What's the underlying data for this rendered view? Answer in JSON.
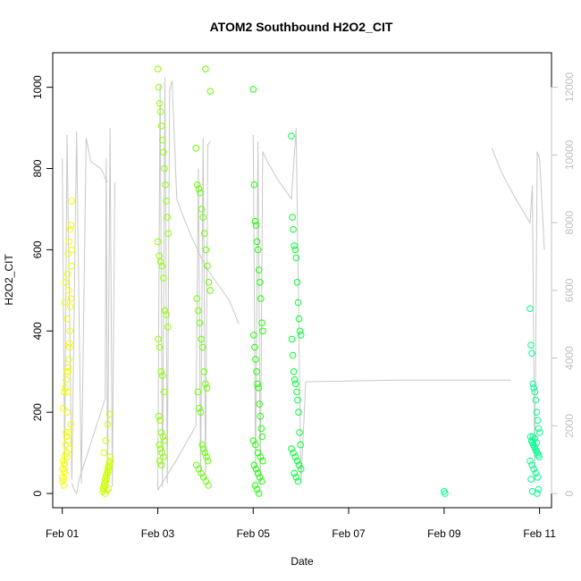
{
  "chart_data": {
    "type": "scatter",
    "title": "ATOM2 Southbound H2O2_CIT",
    "xlabel": "Date",
    "ylabel": "H2O2_CIT",
    "x_unit": "days",
    "xlim": [
      -0.2,
      10.25
    ],
    "ylim": [
      -35,
      1085
    ],
    "y2lim": [
      -420,
      13020
    ],
    "x_ticks": [
      0,
      2,
      4,
      6,
      8,
      10
    ],
    "x_tick_labels": [
      "Feb 01",
      "Feb 03",
      "Feb 05",
      "Feb 07",
      "Feb 09",
      "Feb 11"
    ],
    "y_ticks": [
      0,
      200,
      400,
      600,
      800,
      1000
    ],
    "y2_ticks": [
      0,
      2000,
      4000,
      6000,
      8000,
      10000,
      12000
    ],
    "colors": {
      "altitude_line": "#c8c8c8",
      "right_axis": "#c0c0c0",
      "gradient": [
        "#ffff00",
        "#bfff00",
        "#80ff00",
        "#40ff00",
        "#00ff40",
        "#00ff80",
        "#00ffbf"
      ]
    },
    "altitude_series": [
      {
        "name": "",
        "flight": 1,
        "x": [
          0.0,
          0.05,
          0.1,
          0.2,
          0.3,
          0.4,
          0.5,
          0.6,
          0.7,
          0.8,
          0.85,
          0.9,
          0.95
        ],
        "y": [
          9900,
          900,
          10600,
          400,
          10700,
          300,
          10500,
          9800,
          9700,
          9600,
          9500,
          9300,
          9200
        ]
      },
      {
        "name": "",
        "flight": 2,
        "x": [
          0.2,
          0.25,
          0.3,
          0.35,
          0.9,
          0.92,
          0.95,
          1.0,
          1.05,
          1.1
        ],
        "y": [
          300,
          100,
          0,
          400,
          2800,
          9900,
          300,
          10800,
          200,
          9200
        ]
      },
      {
        "name": "",
        "flight": 3,
        "x": [
          2.0,
          2.05,
          2.1,
          2.15,
          2.2,
          2.25,
          2.3,
          2.4,
          2.5,
          2.7,
          3.0,
          3.5,
          3.7
        ],
        "y": [
          100,
          12100,
          200,
          12300,
          300,
          11900,
          12200,
          8700,
          8300,
          7600,
          6700,
          5700,
          5000
        ]
      },
      {
        "name": "",
        "flight": 4,
        "x": [
          2.0,
          2.4,
          2.8,
          2.85,
          2.9,
          2.95,
          3.0,
          3.05,
          3.1
        ],
        "y": [
          100,
          1000,
          2000,
          9600,
          500,
          10500,
          400,
          10300,
          10400
        ]
      },
      {
        "name": "",
        "flight": 5,
        "x": [
          4.0,
          4.05,
          4.1,
          4.15,
          4.2,
          4.3,
          4.5,
          4.8,
          4.9,
          5.0,
          5.1,
          7.0,
          9.4
        ],
        "y": [
          10600,
          500,
          10400,
          300,
          10100,
          9800,
          9300,
          8700,
          10800,
          300,
          3300,
          3350,
          3350
        ]
      },
      {
        "name": "",
        "flight": 6,
        "x": [
          9.0,
          9.2,
          9.5,
          9.8,
          9.85,
          9.9,
          9.95,
          10.0,
          10.1
        ],
        "y": [
          10200,
          9500,
          8700,
          8000,
          9100,
          300,
          10100,
          9900,
          7200
        ]
      }
    ],
    "series": [
      {
        "name": "",
        "flight": 1,
        "color": "#f2ff00",
        "x": [
          0.0,
          0.01,
          0.02,
          0.03,
          0.04,
          0.05,
          0.06,
          0.07,
          0.08,
          0.09,
          0.1,
          0.11,
          0.12,
          0.13,
          0.14,
          0.15,
          0.16,
          0.17,
          0.18,
          0.19,
          0.2,
          0.02,
          0.04,
          0.06,
          0.08,
          0.1,
          0.12,
          0.14,
          0.16,
          0.18,
          0.2,
          0.05,
          0.1,
          0.15,
          0.05,
          0.1,
          0.15,
          0.0,
          0.03,
          0.06,
          0.09,
          0.12,
          0.15,
          0.18,
          0.07,
          0.11,
          0.13
        ],
        "y": [
          40,
          60,
          80,
          35,
          55,
          75,
          95,
          120,
          150,
          140,
          200,
          250,
          300,
          310,
          330,
          360,
          400,
          460,
          480,
          560,
          600,
          210,
          250,
          260,
          280,
          300,
          590,
          620,
          650,
          660,
          720,
          470,
          430,
          370,
          70,
          90,
          110,
          30,
          20,
          50,
          100,
          130,
          150,
          170,
          520,
          540,
          500
        ]
      },
      {
        "name": "",
        "flight": 2,
        "color": "#ccff00",
        "x": [
          0.85,
          0.87,
          0.89,
          0.91,
          0.93,
          0.95,
          0.97,
          0.99,
          1.01,
          0.86,
          0.88,
          0.9,
          0.92,
          0.94,
          0.96,
          0.98,
          1.0,
          0.87,
          0.91,
          0.95,
          0.99,
          0.9,
          0.94,
          0.97
        ],
        "y": [
          5,
          10,
          20,
          30,
          40,
          50,
          60,
          70,
          80,
          15,
          25,
          35,
          45,
          55,
          65,
          75,
          90,
          100,
          130,
          170,
          195,
          0,
          8,
          12
        ]
      },
      {
        "name": "",
        "flight": 3,
        "color": "#8cff00",
        "x": [
          2.0,
          2.02,
          2.04,
          2.06,
          2.08,
          2.1,
          2.12,
          2.14,
          2.16,
          2.18,
          2.2,
          2.22,
          2.0,
          2.03,
          2.06,
          2.09,
          2.12,
          2.15,
          2.18,
          2.21,
          2.01,
          2.04,
          2.07,
          2.1,
          2.13,
          2.02,
          2.05,
          2.08,
          2.11,
          2.14,
          2.03,
          2.06,
          2.09,
          2.12,
          2.04,
          2.08
        ],
        "y": [
          1045,
          1000,
          960,
          940,
          905,
          870,
          840,
          800,
          760,
          720,
          680,
          640,
          620,
          585,
          570,
          560,
          530,
          450,
          440,
          410,
          380,
          360,
          300,
          290,
          250,
          190,
          180,
          150,
          140,
          130,
          120,
          110,
          100,
          90,
          80,
          70
        ]
      },
      {
        "name": "",
        "flight": 4,
        "color": "#66ff00",
        "x": [
          2.8,
          2.83,
          2.86,
          2.89,
          2.92,
          2.95,
          2.98,
          3.01,
          3.04,
          3.07,
          3.1,
          2.82,
          2.85,
          2.88,
          2.91,
          2.94,
          2.97,
          3.0,
          3.03,
          2.84,
          2.87,
          2.9,
          2.93,
          2.96,
          2.99,
          3.02,
          3.05,
          2.81,
          2.86,
          2.91,
          2.96,
          3.01,
          3.06,
          3.0,
          3.1
        ],
        "y": [
          850,
          760,
          750,
          740,
          700,
          680,
          640,
          600,
          560,
          520,
          500,
          480,
          450,
          420,
          380,
          360,
          300,
          270,
          260,
          250,
          210,
          200,
          120,
          110,
          100,
          90,
          80,
          70,
          60,
          50,
          40,
          30,
          20,
          1045,
          990
        ]
      },
      {
        "name": "",
        "flight": 5,
        "color": "#1aff00",
        "x": [
          4.0,
          4.02,
          4.04,
          4.06,
          4.08,
          4.1,
          4.12,
          4.14,
          4.16,
          4.18,
          4.2,
          4.01,
          4.03,
          4.05,
          4.07,
          4.09,
          4.11,
          4.13,
          4.15,
          4.17,
          4.19,
          4.0,
          4.05,
          4.1,
          4.15,
          4.2,
          4.02,
          4.06,
          4.1,
          4.14,
          4.18,
          4.04,
          4.08,
          4.12
        ],
        "y": [
          995,
          760,
          670,
          660,
          620,
          600,
          550,
          520,
          480,
          420,
          400,
          390,
          360,
          330,
          300,
          270,
          260,
          220,
          190,
          160,
          140,
          130,
          120,
          100,
          90,
          80,
          70,
          60,
          50,
          40,
          30,
          20,
          10,
          0
        ]
      },
      {
        "name": "",
        "flight": 6,
        "color": "#00ff33",
        "x": [
          4.8,
          4.82,
          4.84,
          4.86,
          4.88,
          4.9,
          4.92,
          4.94,
          4.96,
          4.98,
          5.0,
          4.81,
          4.83,
          4.85,
          4.87,
          4.89,
          4.91,
          4.93,
          4.95,
          4.97,
          4.99,
          4.8,
          4.84,
          4.88,
          4.92,
          4.96,
          5.0,
          4.86,
          4.9,
          4.94
        ],
        "y": [
          880,
          680,
          650,
          610,
          600,
          580,
          520,
          470,
          430,
          400,
          390,
          380,
          340,
          300,
          280,
          270,
          250,
          230,
          200,
          150,
          120,
          110,
          100,
          90,
          80,
          70,
          60,
          50,
          40,
          30
        ]
      },
      {
        "name": "",
        "flight": 7,
        "color": "#00ff8c",
        "x": [
          8.0,
          8.02,
          9.8,
          9.82,
          9.84,
          9.86,
          9.88,
          9.9,
          9.92,
          9.94,
          9.96,
          9.98,
          10.0,
          9.81,
          9.83,
          9.85,
          9.87,
          9.89,
          9.91,
          9.93,
          9.95,
          9.97,
          9.99,
          9.8,
          9.84,
          9.88,
          9.92,
          9.96,
          9.82,
          9.86,
          9.9,
          9.94,
          9.98,
          9.85,
          9.95
        ],
        "y": [
          5,
          0,
          455,
          365,
          345,
          270,
          260,
          250,
          230,
          200,
          180,
          160,
          150,
          140,
          130,
          125,
          120,
          115,
          110,
          105,
          100,
          95,
          90,
          80,
          70,
          60,
          50,
          40,
          35,
          140,
          135,
          125,
          10,
          5,
          0
        ]
      }
    ]
  }
}
